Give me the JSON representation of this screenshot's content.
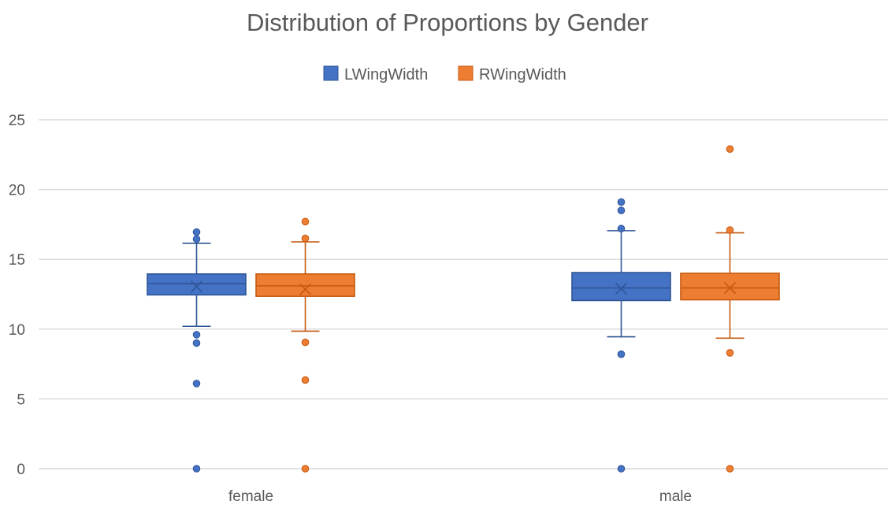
{
  "chart_data": {
    "type": "box",
    "title": "Distribution of Proportions by Gender",
    "xlabel": "",
    "ylabel": "",
    "ylim": [
      0,
      25
    ],
    "yticks": [
      0,
      5,
      10,
      15,
      20,
      25
    ],
    "grid": true,
    "legend_position": "top",
    "categories": [
      "female",
      "male"
    ],
    "series": [
      {
        "name": "LWingWidth",
        "color": "#4472C4",
        "edge_color": "#2F5597",
        "boxes": [
          {
            "category": "female",
            "whisker_low": 10.2,
            "q1": 12.45,
            "median": 13.25,
            "q3": 13.95,
            "whisker_high": 16.15,
            "mean": 13.05,
            "outliers": [
              16.95,
              16.45,
              9.6,
              9.0,
              6.1,
              0
            ]
          },
          {
            "category": "male",
            "whisker_low": 9.45,
            "q1": 12.05,
            "median": 12.95,
            "q3": 14.05,
            "whisker_high": 17.05,
            "mean": 12.9,
            "outliers": [
              19.1,
              18.5,
              17.2,
              8.2,
              0
            ]
          }
        ]
      },
      {
        "name": "RWingWidth",
        "color": "#ED7D31",
        "edge_color": "#C55A11",
        "boxes": [
          {
            "category": "female",
            "whisker_low": 9.85,
            "q1": 12.35,
            "median": 13.1,
            "q3": 13.95,
            "whisker_high": 16.25,
            "mean": 12.85,
            "outliers": [
              17.7,
              16.5,
              9.05,
              6.35,
              0
            ]
          },
          {
            "category": "male",
            "whisker_low": 9.35,
            "q1": 12.1,
            "median": 12.95,
            "q3": 14.0,
            "whisker_high": 16.9,
            "mean": 12.95,
            "outliers": [
              22.9,
              17.1,
              8.3,
              0
            ]
          }
        ]
      }
    ]
  }
}
